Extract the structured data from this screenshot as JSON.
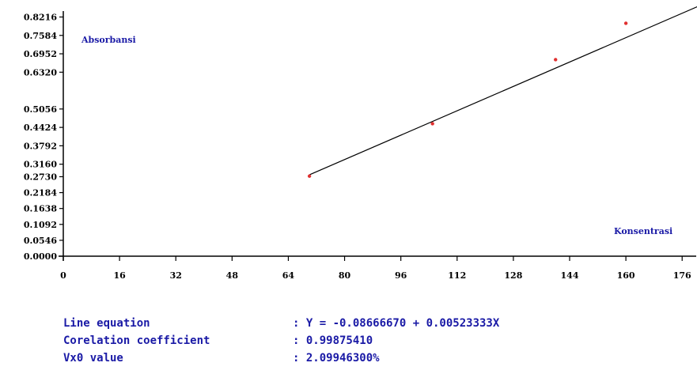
{
  "chart_data": {
    "type": "scatter",
    "ylabel": "Absorbansi",
    "xlabel": "Konsentrasi",
    "x_ticks": [
      0,
      16,
      32,
      48,
      64,
      80,
      96,
      112,
      128,
      144,
      160,
      176
    ],
    "y_ticks": [
      0.0,
      0.0546,
      0.1092,
      0.1638,
      0.2184,
      0.273,
      0.316,
      0.3792,
      0.4424,
      0.5056,
      0.632,
      0.6952,
      0.7584,
      0.8216
    ],
    "y_tick_labels": [
      "0.0000",
      "0.0546",
      "0.1092",
      "0.1638",
      "0.2184",
      "0.2730",
      "0.3160",
      "0.3792",
      "0.4424",
      "0.5056",
      "0.6320",
      "0.6952",
      "0.7584",
      "0.8216"
    ],
    "xlim": [
      0,
      180
    ],
    "ylim": [
      0,
      0.88
    ],
    "points": [
      {
        "x": 70,
        "y": 0.275
      },
      {
        "x": 105,
        "y": 0.455
      },
      {
        "x": 140,
        "y": 0.675
      },
      {
        "x": 160,
        "y": 0.8
      }
    ],
    "fit_line": {
      "x_start": 70,
      "x_end": 182,
      "intercept": -0.0866667,
      "slope": 0.00523333
    },
    "colors": {
      "points": "#e03030",
      "line": "#000000",
      "axis": "#000000",
      "labels": "#1a1aa6"
    }
  },
  "stats": {
    "line_equation_label": "Line equation",
    "line_equation_value": ": Y = -0.08666670 + 0.00523333X",
    "correlation_label": "Corelation coefficient",
    "correlation_value": ": 0.99875410",
    "vx0_label": "Vx0 value",
    "vx0_value": ": 2.09946300%"
  }
}
